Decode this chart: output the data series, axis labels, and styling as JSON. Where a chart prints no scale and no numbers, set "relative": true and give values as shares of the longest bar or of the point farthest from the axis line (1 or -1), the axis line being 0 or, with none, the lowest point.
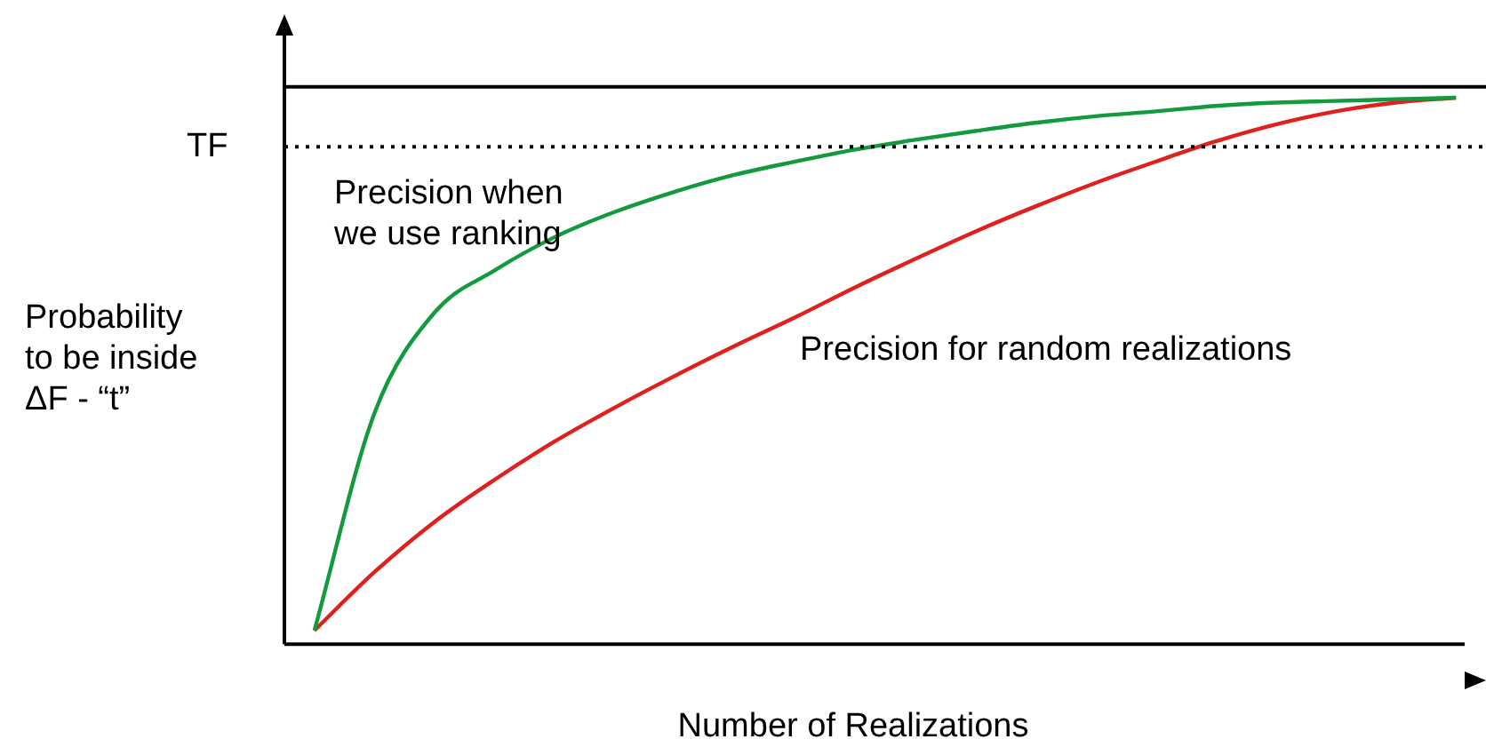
{
  "chart_data": {
    "type": "line",
    "relative": true,
    "xlabel": "Number of Realizations",
    "ylabel": "Probability to be inside ΔF - “t”",
    "categories": [
      null,
      null,
      null,
      null,
      null,
      null,
      null,
      null,
      null,
      null,
      null,
      null,
      null,
      null,
      null,
      null,
      null,
      null,
      null,
      null
    ],
    "series": [
      {
        "name": "Precision when we use ranking",
        "color": "#129a3c",
        "values": [
          0.025,
          0.423,
          0.607,
          0.684,
          0.745,
          0.791,
          0.828,
          0.859,
          0.883,
          0.905,
          0.923,
          0.939,
          0.954,
          0.966,
          0.975,
          0.985,
          0.991,
          0.994,
          0.997,
          1
        ]
      },
      {
        "name": "Precision for random realizations",
        "color": "#e0201c",
        "values": [
          0.025,
          0.132,
          0.224,
          0.301,
          0.371,
          0.433,
          0.491,
          0.546,
          0.598,
          0.653,
          0.705,
          0.755,
          0.801,
          0.844,
          0.883,
          0.92,
          0.951,
          0.975,
          0.991,
          1
        ]
      }
    ],
    "ref_lines": [
      {
        "axis": "y",
        "value": 1.02,
        "color": "#000000",
        "line_style": "solid"
      },
      {
        "axis": "y",
        "value": 0.91,
        "label": "TF",
        "color": "#000000",
        "line_style": "dotted"
      }
    ],
    "grid": false,
    "legend": false,
    "marker": "none",
    "line_style": "solid"
  }
}
